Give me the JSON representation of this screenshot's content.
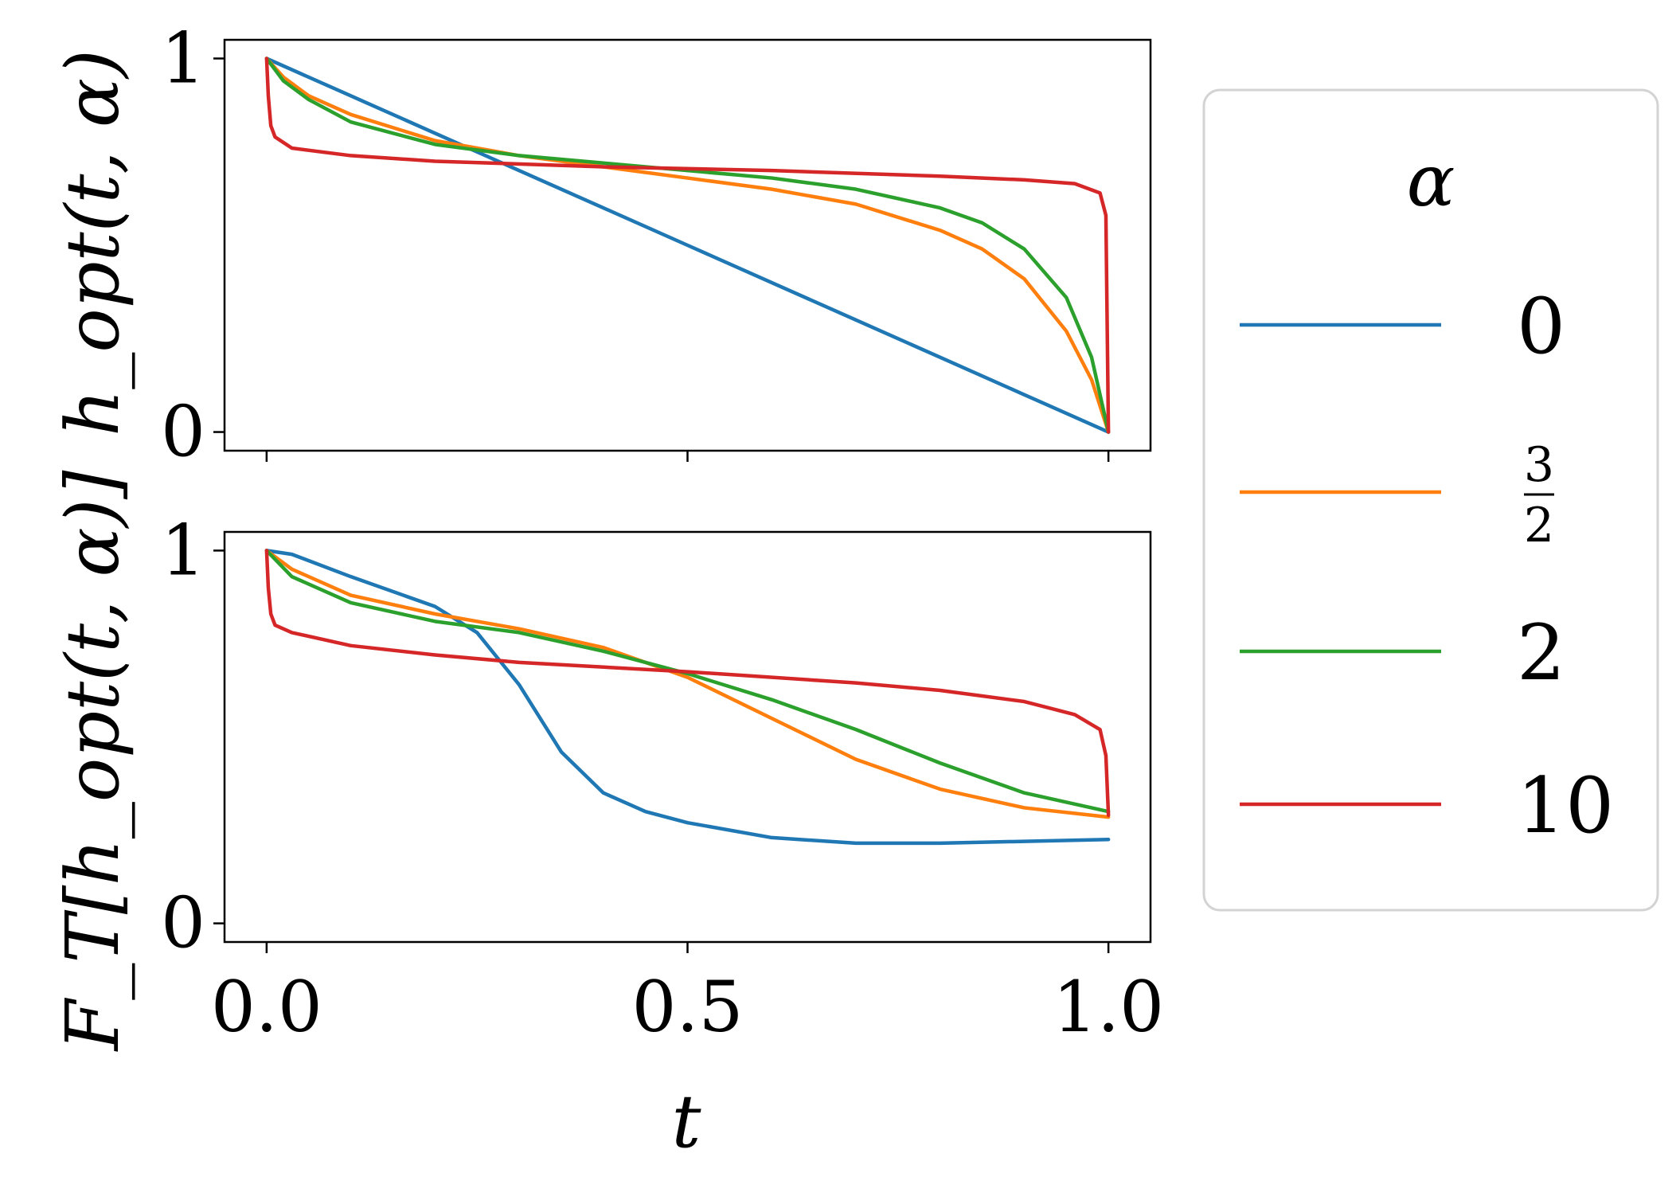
{
  "chart_data": [
    {
      "type": "line",
      "panel": "top",
      "ylabel": "h_opt(t, α)",
      "xlabel": "",
      "xlim": [
        -0.05,
        1.05
      ],
      "ylim": [
        -0.05,
        1.05
      ],
      "yticks": [
        0,
        1
      ],
      "ytick_labels": [
        "0",
        "1"
      ],
      "xticks": [
        0.0,
        0.5,
        1.0
      ],
      "xtick_labels": [],
      "grid": false,
      "series": [
        {
          "name": "0",
          "color": "#1f77b4",
          "x": [
            0,
            0.1,
            0.2,
            0.3,
            0.4,
            0.5,
            0.6,
            0.7,
            0.8,
            0.9,
            1.0
          ],
          "y": [
            1.0,
            0.9,
            0.8,
            0.7,
            0.6,
            0.5,
            0.4,
            0.3,
            0.2,
            0.1,
            0.0
          ]
        },
        {
          "name": "3/2",
          "color": "#ff7f0e",
          "x": [
            0,
            0.02,
            0.05,
            0.1,
            0.2,
            0.3,
            0.4,
            0.5,
            0.6,
            0.7,
            0.8,
            0.85,
            0.9,
            0.95,
            0.98,
            1.0
          ],
          "y": [
            1.0,
            0.95,
            0.9,
            0.85,
            0.78,
            0.74,
            0.71,
            0.68,
            0.65,
            0.61,
            0.54,
            0.49,
            0.41,
            0.27,
            0.14,
            0.0
          ]
        },
        {
          "name": "2",
          "color": "#2ca02c",
          "x": [
            0,
            0.02,
            0.05,
            0.1,
            0.2,
            0.3,
            0.4,
            0.5,
            0.6,
            0.7,
            0.8,
            0.85,
            0.9,
            0.95,
            0.98,
            1.0
          ],
          "y": [
            1.0,
            0.94,
            0.89,
            0.83,
            0.77,
            0.74,
            0.72,
            0.7,
            0.68,
            0.65,
            0.6,
            0.56,
            0.49,
            0.36,
            0.2,
            0.0
          ]
        },
        {
          "name": "10",
          "color": "#d62728",
          "x": [
            0,
            0.002,
            0.005,
            0.01,
            0.03,
            0.1,
            0.2,
            0.4,
            0.6,
            0.8,
            0.9,
            0.96,
            0.99,
            0.997,
            1.0
          ],
          "y": [
            1.0,
            0.9,
            0.82,
            0.79,
            0.76,
            0.74,
            0.725,
            0.71,
            0.7,
            0.685,
            0.675,
            0.665,
            0.64,
            0.58,
            0.0
          ]
        }
      ]
    },
    {
      "type": "line",
      "panel": "bottom",
      "ylabel": "F_T[h_opt(t, α)]",
      "xlabel": "t",
      "xlim": [
        -0.05,
        1.05
      ],
      "ylim": [
        -0.05,
        1.05
      ],
      "yticks": [
        0,
        1
      ],
      "ytick_labels": [
        "0",
        "1"
      ],
      "xticks": [
        0.0,
        0.5,
        1.0
      ],
      "xtick_labels": [
        "0.0",
        "0.5",
        "1.0"
      ],
      "grid": false,
      "series": [
        {
          "name": "0",
          "color": "#1f77b4",
          "x": [
            0,
            0.03,
            0.1,
            0.2,
            0.25,
            0.3,
            0.35,
            0.4,
            0.45,
            0.5,
            0.6,
            0.7,
            0.8,
            0.9,
            1.0
          ],
          "y": [
            1.0,
            0.99,
            0.93,
            0.85,
            0.78,
            0.64,
            0.46,
            0.35,
            0.3,
            0.27,
            0.23,
            0.215,
            0.215,
            0.22,
            0.225
          ]
        },
        {
          "name": "3/2",
          "color": "#ff7f0e",
          "x": [
            0,
            0.03,
            0.1,
            0.2,
            0.3,
            0.4,
            0.5,
            0.6,
            0.7,
            0.8,
            0.9,
            1.0
          ],
          "y": [
            1.0,
            0.95,
            0.88,
            0.83,
            0.79,
            0.74,
            0.66,
            0.55,
            0.44,
            0.36,
            0.31,
            0.285
          ]
        },
        {
          "name": "2",
          "color": "#2ca02c",
          "x": [
            0,
            0.03,
            0.1,
            0.2,
            0.3,
            0.4,
            0.5,
            0.6,
            0.7,
            0.8,
            0.9,
            1.0
          ],
          "y": [
            1.0,
            0.93,
            0.86,
            0.81,
            0.78,
            0.73,
            0.67,
            0.6,
            0.52,
            0.43,
            0.35,
            0.3
          ]
        },
        {
          "name": "10",
          "color": "#d62728",
          "x": [
            0,
            0.002,
            0.005,
            0.01,
            0.03,
            0.1,
            0.2,
            0.3,
            0.5,
            0.7,
            0.8,
            0.9,
            0.96,
            0.99,
            0.997,
            1.0
          ],
          "y": [
            1.0,
            0.9,
            0.83,
            0.8,
            0.78,
            0.745,
            0.72,
            0.7,
            0.675,
            0.645,
            0.625,
            0.595,
            0.56,
            0.52,
            0.45,
            0.29
          ]
        }
      ]
    }
  ],
  "legend": {
    "title": "α",
    "placement": "right",
    "entries": [
      {
        "label": "0",
        "color": "#1f77b4"
      },
      {
        "label": "3/2",
        "numerator": "3",
        "denominator": "2",
        "color": "#ff7f0e"
      },
      {
        "label": "2",
        "color": "#2ca02c"
      },
      {
        "label": "10",
        "color": "#d62728"
      }
    ]
  }
}
